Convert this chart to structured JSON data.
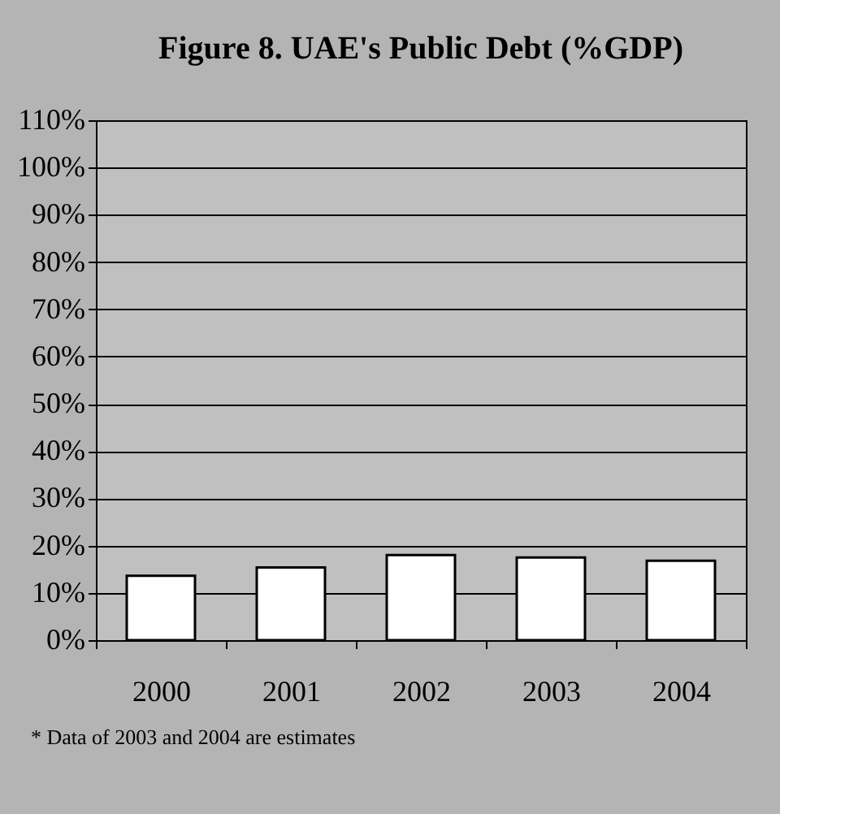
{
  "chart_data": {
    "type": "bar",
    "title": "Figure 8. UAE's Public Debt (%GDP)",
    "categories": [
      "2000",
      "2001",
      "2002",
      "2003",
      "2004"
    ],
    "values": [
      13.6,
      15.4,
      18,
      17.5,
      16.8
    ],
    "color": "#ffffff",
    "ylim": [
      0,
      110
    ],
    "yticks": [
      {
        "value": 0,
        "label": "0%"
      },
      {
        "value": 10,
        "label": "10%"
      },
      {
        "value": 20,
        "label": "20%"
      },
      {
        "value": 30,
        "label": "30%"
      },
      {
        "value": 40,
        "label": "40%"
      },
      {
        "value": 50,
        "label": "50%"
      },
      {
        "value": 60,
        "label": "60%"
      },
      {
        "value": 70,
        "label": "70%"
      },
      {
        "value": 80,
        "label": "80%"
      },
      {
        "value": 90,
        "label": "90%"
      },
      {
        "value": 100,
        "label": "100%"
      },
      {
        "value": 110,
        "label": "110%"
      }
    ],
    "grid": "y",
    "annotations": [
      "* Data of 2003 and 2004 are estimates"
    ]
  }
}
